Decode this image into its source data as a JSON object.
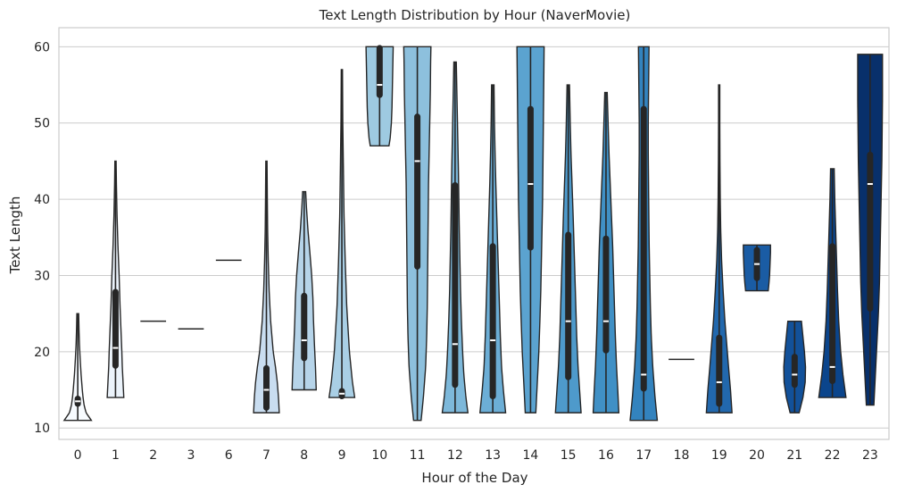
{
  "chart_data": {
    "type": "violin",
    "title": "Text Length Distribution by Hour (NaverMovie)",
    "xlabel": "Hour of the Day",
    "ylabel": "Text Length",
    "ylim": [
      8.5,
      62.5
    ],
    "yticks": [
      10,
      20,
      30,
      40,
      50,
      60
    ],
    "grid": "horizontal",
    "categories": [
      "0",
      "1",
      "2",
      "3",
      "6",
      "7",
      "8",
      "9",
      "10",
      "11",
      "12",
      "13",
      "14",
      "15",
      "16",
      "17",
      "18",
      "19",
      "20",
      "21",
      "22",
      "23"
    ],
    "series": [
      {
        "hour": "0",
        "color": "#f7fbff",
        "min": 11,
        "max": 25,
        "q1": 13,
        "median": 13.5,
        "q3": 14,
        "profile": [
          [
            11,
            0.9
          ],
          [
            12,
            0.55
          ],
          [
            13,
            0.42
          ],
          [
            14,
            0.35
          ],
          [
            15,
            0.3
          ],
          [
            17,
            0.22
          ],
          [
            19,
            0.16
          ],
          [
            21,
            0.11
          ],
          [
            23,
            0.08
          ],
          [
            25,
            0.06
          ]
        ]
      },
      {
        "hour": "1",
        "color": "#ebf3fb",
        "min": 14,
        "max": 45,
        "q1": 18,
        "median": 20.5,
        "q3": 28,
        "profile": [
          [
            14,
            0.55
          ],
          [
            16,
            0.5
          ],
          [
            18,
            0.45
          ],
          [
            20,
            0.42
          ],
          [
            22,
            0.38
          ],
          [
            26,
            0.3
          ],
          [
            30,
            0.24
          ],
          [
            34,
            0.16
          ],
          [
            38,
            0.1
          ],
          [
            42,
            0.06
          ],
          [
            45,
            0.04
          ]
        ]
      },
      {
        "hour": "2",
        "color": "#dfebf7",
        "min": 24,
        "max": 24,
        "q1": 24,
        "median": 24,
        "q3": 24,
        "profile": [
          [
            24,
            0.85
          ]
        ]
      },
      {
        "hour": "3",
        "color": "#d3e3f3",
        "min": 23,
        "max": 23,
        "q1": 23,
        "median": 23,
        "q3": 23,
        "profile": [
          [
            23,
            0.85
          ]
        ]
      },
      {
        "hour": "6",
        "color": "#c6dbef",
        "min": 32,
        "max": 32,
        "q1": 32,
        "median": 32,
        "q3": 32,
        "profile": [
          [
            32,
            0.85
          ]
        ]
      },
      {
        "hour": "7",
        "color": "#c9ddf0",
        "min": 12,
        "max": 45,
        "q1": 12.5,
        "median": 15,
        "q3": 18,
        "profile": [
          [
            12,
            0.85
          ],
          [
            14,
            0.8
          ],
          [
            16,
            0.72
          ],
          [
            18,
            0.6
          ],
          [
            20,
            0.45
          ],
          [
            24,
            0.28
          ],
          [
            28,
            0.18
          ],
          [
            32,
            0.12
          ],
          [
            36,
            0.08
          ],
          [
            40,
            0.06
          ],
          [
            45,
            0.04
          ]
        ]
      },
      {
        "hour": "8",
        "color": "#b6d4e9",
        "min": 15,
        "max": 41,
        "q1": 19,
        "median": 21.5,
        "q3": 27.5,
        "profile": [
          [
            15,
            0.8
          ],
          [
            18,
            0.75
          ],
          [
            21,
            0.68
          ],
          [
            24,
            0.62
          ],
          [
            27,
            0.58
          ],
          [
            30,
            0.5
          ],
          [
            33,
            0.38
          ],
          [
            36,
            0.25
          ],
          [
            39,
            0.15
          ],
          [
            41,
            0.1
          ]
        ]
      },
      {
        "hour": "9",
        "color": "#a9cfe5",
        "min": 14,
        "max": 57,
        "q1": 14,
        "median": 14.5,
        "q3": 15,
        "profile": [
          [
            14,
            0.85
          ],
          [
            16,
            0.7
          ],
          [
            20,
            0.5
          ],
          [
            26,
            0.32
          ],
          [
            32,
            0.22
          ],
          [
            38,
            0.14
          ],
          [
            44,
            0.1
          ],
          [
            50,
            0.06
          ],
          [
            57,
            0.04
          ]
        ]
      },
      {
        "hour": "10",
        "color": "#9ecae1",
        "min": 47,
        "max": 60,
        "q1": 53.5,
        "median": 55,
        "q3": 60,
        "profile": [
          [
            47,
            0.62
          ],
          [
            48,
            0.7
          ],
          [
            50,
            0.78
          ],
          [
            52,
            0.82
          ],
          [
            54,
            0.84
          ],
          [
            56,
            0.86
          ],
          [
            58,
            0.88
          ],
          [
            60,
            0.9
          ]
        ]
      },
      {
        "hour": "11",
        "color": "#8dc0dd",
        "min": 11,
        "max": 60,
        "q1": 31,
        "median": 45,
        "q3": 51,
        "profile": [
          [
            11,
            0.25
          ],
          [
            14,
            0.4
          ],
          [
            18,
            0.55
          ],
          [
            22,
            0.62
          ],
          [
            26,
            0.66
          ],
          [
            30,
            0.68
          ],
          [
            34,
            0.7
          ],
          [
            38,
            0.72
          ],
          [
            42,
            0.74
          ],
          [
            46,
            0.78
          ],
          [
            50,
            0.82
          ],
          [
            54,
            0.86
          ],
          [
            58,
            0.88
          ],
          [
            60,
            0.9
          ]
        ]
      },
      {
        "hour": "12",
        "color": "#7db8da",
        "min": 12,
        "max": 58,
        "q1": 15.5,
        "median": 21,
        "q3": 42,
        "profile": [
          [
            12,
            0.85
          ],
          [
            14,
            0.72
          ],
          [
            17,
            0.58
          ],
          [
            20,
            0.5
          ],
          [
            24,
            0.42
          ],
          [
            28,
            0.36
          ],
          [
            32,
            0.32
          ],
          [
            36,
            0.28
          ],
          [
            40,
            0.25
          ],
          [
            44,
            0.22
          ],
          [
            48,
            0.18
          ],
          [
            52,
            0.14
          ],
          [
            56,
            0.1
          ],
          [
            58,
            0.08
          ]
        ]
      },
      {
        "hour": "13",
        "color": "#6caed6",
        "min": 12,
        "max": 55,
        "q1": 14,
        "median": 21.5,
        "q3": 34,
        "profile": [
          [
            12,
            0.85
          ],
          [
            15,
            0.7
          ],
          [
            18,
            0.58
          ],
          [
            22,
            0.5
          ],
          [
            26,
            0.44
          ],
          [
            30,
            0.38
          ],
          [
            34,
            0.32
          ],
          [
            38,
            0.26
          ],
          [
            42,
            0.2
          ],
          [
            46,
            0.15
          ],
          [
            50,
            0.11
          ],
          [
            55,
            0.08
          ]
        ]
      },
      {
        "hour": "14",
        "color": "#5ba3d0",
        "min": 12,
        "max": 60,
        "q1": 33.5,
        "median": 42,
        "q3": 52,
        "profile": [
          [
            12,
            0.35
          ],
          [
            16,
            0.45
          ],
          [
            20,
            0.55
          ],
          [
            24,
            0.62
          ],
          [
            28,
            0.68
          ],
          [
            32,
            0.72
          ],
          [
            36,
            0.76
          ],
          [
            40,
            0.8
          ],
          [
            44,
            0.82
          ],
          [
            48,
            0.84
          ],
          [
            52,
            0.86
          ],
          [
            56,
            0.88
          ],
          [
            60,
            0.9
          ]
        ]
      },
      {
        "hour": "15",
        "color": "#4e9acb",
        "min": 12,
        "max": 55,
        "q1": 16.5,
        "median": 24,
        "q3": 35.5,
        "profile": [
          [
            12,
            0.85
          ],
          [
            15,
            0.75
          ],
          [
            18,
            0.65
          ],
          [
            22,
            0.56
          ],
          [
            26,
            0.5
          ],
          [
            30,
            0.44
          ],
          [
            34,
            0.38
          ],
          [
            38,
            0.32
          ],
          [
            42,
            0.25
          ],
          [
            46,
            0.18
          ],
          [
            50,
            0.13
          ],
          [
            55,
            0.08
          ]
        ]
      },
      {
        "hour": "16",
        "color": "#4090c5",
        "min": 12,
        "max": 54,
        "q1": 20,
        "median": 24,
        "q3": 35,
        "profile": [
          [
            12,
            0.85
          ],
          [
            15,
            0.78
          ],
          [
            18,
            0.7
          ],
          [
            22,
            0.62
          ],
          [
            26,
            0.56
          ],
          [
            30,
            0.5
          ],
          [
            34,
            0.44
          ],
          [
            38,
            0.36
          ],
          [
            42,
            0.28
          ],
          [
            46,
            0.2
          ],
          [
            50,
            0.14
          ],
          [
            54,
            0.08
          ]
        ]
      },
      {
        "hour": "17",
        "color": "#3383be",
        "min": 11,
        "max": 60,
        "q1": 15,
        "median": 17,
        "q3": 52,
        "profile": [
          [
            11,
            0.9
          ],
          [
            14,
            0.75
          ],
          [
            18,
            0.6
          ],
          [
            22,
            0.5
          ],
          [
            26,
            0.44
          ],
          [
            30,
            0.4
          ],
          [
            34,
            0.36
          ],
          [
            38,
            0.34
          ],
          [
            42,
            0.32
          ],
          [
            46,
            0.3
          ],
          [
            50,
            0.3
          ],
          [
            54,
            0.32
          ],
          [
            58,
            0.34
          ],
          [
            60,
            0.35
          ]
        ]
      },
      {
        "hour": "18",
        "color": "#2a75b3",
        "min": 19,
        "max": 19,
        "q1": 19,
        "median": 19,
        "q3": 19,
        "profile": [
          [
            19,
            0.85
          ]
        ]
      },
      {
        "hour": "19",
        "color": "#2268ad",
        "min": 12,
        "max": 55,
        "q1": 13,
        "median": 16,
        "q3": 22,
        "profile": [
          [
            12,
            0.85
          ],
          [
            15,
            0.75
          ],
          [
            18,
            0.62
          ],
          [
            21,
            0.5
          ],
          [
            24,
            0.38
          ],
          [
            28,
            0.26
          ],
          [
            32,
            0.16
          ],
          [
            36,
            0.1
          ],
          [
            40,
            0.07
          ],
          [
            45,
            0.05
          ],
          [
            50,
            0.04
          ],
          [
            55,
            0.04
          ]
        ]
      },
      {
        "hour": "20",
        "color": "#1a5ca4",
        "min": 28,
        "max": 34,
        "q1": 29.5,
        "median": 31.5,
        "q3": 33.5,
        "profile": [
          [
            28,
            0.75
          ],
          [
            29,
            0.8
          ],
          [
            30,
            0.84
          ],
          [
            31,
            0.86
          ],
          [
            32,
            0.88
          ],
          [
            33,
            0.9
          ],
          [
            34,
            0.9
          ]
        ]
      },
      {
        "hour": "21",
        "color": "#12519a",
        "min": 12,
        "max": 24,
        "q1": 15.5,
        "median": 17,
        "q3": 19.5,
        "profile": [
          [
            12,
            0.3
          ],
          [
            14,
            0.55
          ],
          [
            16,
            0.7
          ],
          [
            18,
            0.72
          ],
          [
            20,
            0.65
          ],
          [
            22,
            0.55
          ],
          [
            24,
            0.45
          ]
        ]
      },
      {
        "hour": "22",
        "color": "#0b458c",
        "min": 14,
        "max": 44,
        "q1": 16,
        "median": 18,
        "q3": 34,
        "profile": [
          [
            14,
            0.9
          ],
          [
            17,
            0.7
          ],
          [
            20,
            0.55
          ],
          [
            24,
            0.42
          ],
          [
            28,
            0.34
          ],
          [
            32,
            0.28
          ],
          [
            36,
            0.22
          ],
          [
            40,
            0.16
          ],
          [
            44,
            0.12
          ]
        ]
      },
      {
        "hour": "23",
        "color": "#08306b",
        "min": 13,
        "max": 59,
        "q1": 25.5,
        "median": 42,
        "q3": 46,
        "profile": [
          [
            13,
            0.25
          ],
          [
            17,
            0.35
          ],
          [
            21,
            0.45
          ],
          [
            25,
            0.55
          ],
          [
            29,
            0.62
          ],
          [
            33,
            0.66
          ],
          [
            37,
            0.7
          ],
          [
            41,
            0.74
          ],
          [
            45,
            0.78
          ],
          [
            49,
            0.8
          ],
          [
            53,
            0.82
          ],
          [
            57,
            0.82
          ],
          [
            59,
            0.82
          ]
        ]
      }
    ]
  }
}
